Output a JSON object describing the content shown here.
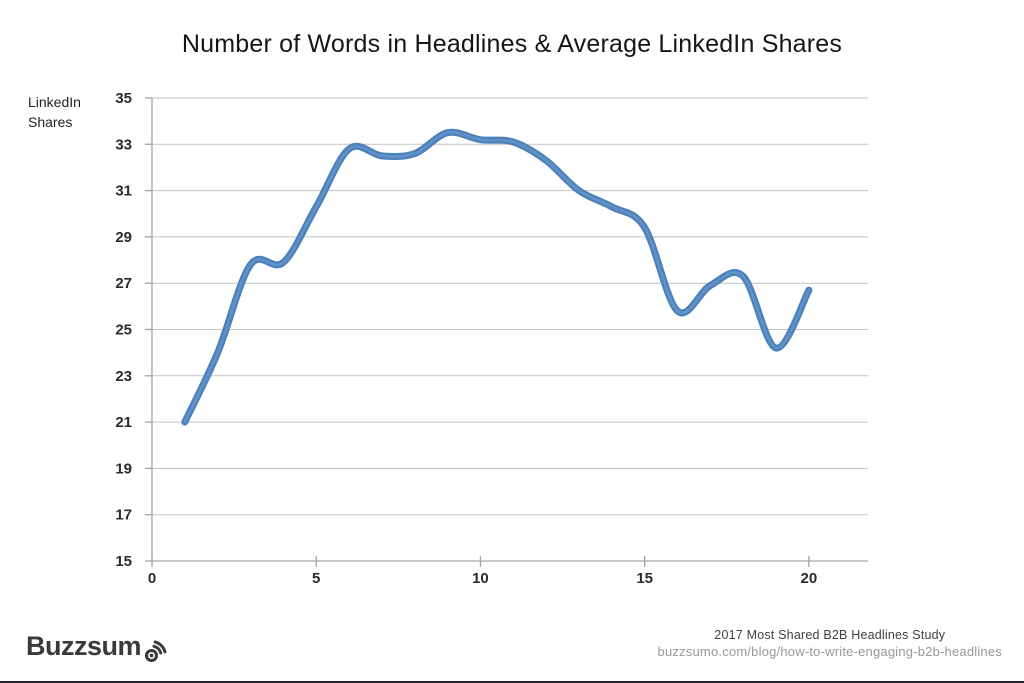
{
  "branding": {
    "logo_text": "Buzzsum",
    "logo_full_name": "Buzzsumo",
    "logo_color": "#3a3a3d",
    "icon": "broadcast-signal-icon"
  },
  "footer": {
    "study": "2017 Most Shared B2B Headlines Study",
    "url": "buzzsumo.com/blog/how-to-write-engaging-b2b-headlines"
  },
  "chart_data": {
    "type": "line",
    "title": "Number of Words in Headlines & Average LinkedIn Shares",
    "ylabel": "LinkedIn Shares",
    "ylabel_display": "LinkedIn\nShares",
    "xlabel": "",
    "x": [
      1,
      2,
      3,
      4,
      5,
      6,
      7,
      8,
      9,
      10,
      11,
      12,
      13,
      14,
      15,
      16,
      17,
      18,
      19,
      20
    ],
    "values": [
      21.0,
      24.0,
      27.8,
      27.9,
      30.3,
      32.8,
      32.5,
      32.6,
      33.5,
      33.2,
      33.1,
      32.3,
      31.0,
      30.3,
      29.4,
      25.8,
      26.9,
      27.3,
      24.2,
      26.7
    ],
    "xticks": [
      0,
      5,
      10,
      15,
      20
    ],
    "yticks": [
      15,
      17,
      19,
      21,
      23,
      25,
      27,
      29,
      31,
      33,
      35
    ],
    "xlim": [
      0,
      21.8
    ],
    "ylim": [
      15,
      35
    ],
    "grid": "horizontal",
    "smooth": true,
    "legend": "none",
    "colors": {
      "line": "#4d81ba",
      "line_highlight": "#76a4d4",
      "grid": "#c2c2c2",
      "axis": "#a3a3a3",
      "tick_label": "#2b2b2b",
      "title": "#161616"
    }
  }
}
